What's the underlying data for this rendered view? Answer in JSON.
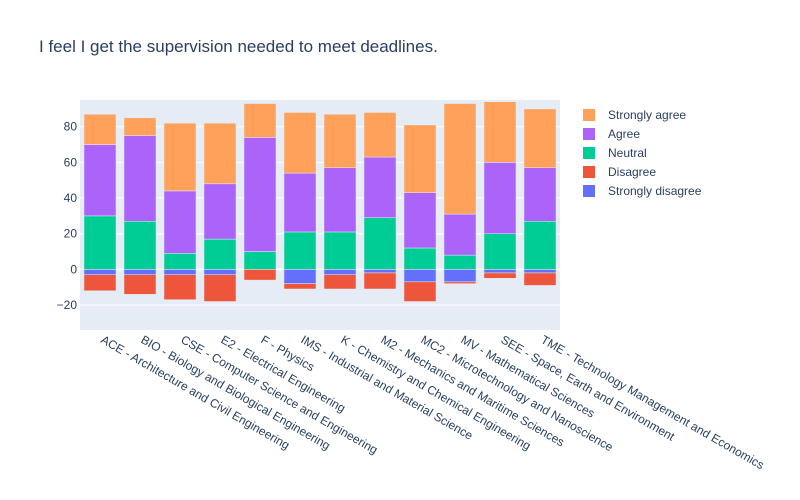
{
  "chart_data": {
    "type": "bar",
    "layout": "diverging-stacked",
    "title": "I feel I get the supervision needed to meet deadlines.",
    "categories": [
      "ACE - Architecture and Civil Engineering",
      "BIO - Biology and Biological Engineering",
      "CSE - Computer Science and Engineering",
      "E2 - Electrical Engineering",
      "F - Physics",
      "IMS - Industrial and Material Science",
      "K - Chemistry and Chemical Engineering",
      "M2 - Mechanics and Maritime Sciences",
      "MC2 - Microtechnology and Nanoscience",
      "MV - Mathematical Sciences",
      "SEE - Space, Earth and Environment",
      "TME - Technology Management and Economics"
    ],
    "series": [
      {
        "name": "Strongly disagree",
        "color": "#636efa",
        "values": [
          -3,
          -3,
          -3,
          -3,
          0,
          -8,
          -3,
          -2,
          -7,
          -7,
          -2,
          -2
        ]
      },
      {
        "name": "Disagree",
        "color": "#ef553b",
        "values": [
          -9,
          -11,
          -14,
          -15,
          -6,
          -3,
          -8,
          -9,
          -11,
          -1,
          -3,
          -7
        ]
      },
      {
        "name": "Neutral",
        "color": "#00cc96",
        "values": [
          30,
          27,
          9,
          17,
          10,
          21,
          21,
          29,
          12,
          8,
          20,
          27
        ]
      },
      {
        "name": "Agree",
        "color": "#ab63fa",
        "values": [
          40,
          48,
          35,
          31,
          64,
          33,
          36,
          34,
          31,
          23,
          40,
          30
        ]
      },
      {
        "name": "Strongly agree",
        "color": "#ffa15a",
        "values": [
          17,
          10,
          38,
          34,
          19,
          34,
          30,
          25,
          38,
          62,
          34,
          33
        ]
      }
    ],
    "legend_order": [
      "Strongly agree",
      "Agree",
      "Neutral",
      "Disagree",
      "Strongly disagree"
    ],
    "yticks": [
      -20,
      0,
      20,
      40,
      60,
      80
    ],
    "ylim": [
      -34,
      95
    ],
    "grid": true,
    "legend_position": "right"
  }
}
